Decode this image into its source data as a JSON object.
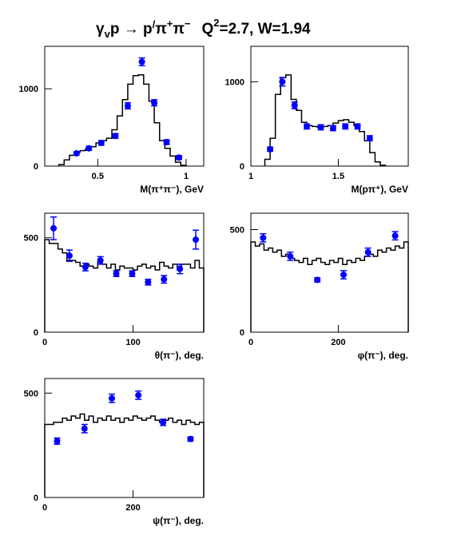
{
  "title": {
    "reaction_g": "γ",
    "reaction_sub": "v",
    "reaction_mid": "p → p",
    "reaction_prime": "/",
    "reaction_pi1": "π",
    "reaction_sup1": "+",
    "reaction_pi2": "π",
    "reaction_sup2": "−",
    "q_label": "Q",
    "q_sup": "2",
    "q_value": "=2.7, W=1.94"
  },
  "chart_data": [
    {
      "type": "line",
      "variant": "histogram-with-points",
      "xlabel": "M(π⁺π⁻), GeV",
      "xlim": [
        0.2,
        1.1
      ],
      "ylim": [
        0,
        1550
      ],
      "xticks": [
        0.5,
        1
      ],
      "xtick_labels": [
        "0.5",
        "1"
      ],
      "yticks": [
        0,
        1000
      ],
      "ytick_labels": [
        "0",
        "1000"
      ],
      "histogram": {
        "edges": [
          0.28,
          0.31,
          0.34,
          0.37,
          0.4,
          0.43,
          0.46,
          0.49,
          0.52,
          0.55,
          0.58,
          0.61,
          0.64,
          0.67,
          0.7,
          0.73,
          0.76,
          0.79,
          0.82,
          0.85,
          0.88,
          0.91,
          0.94,
          0.97,
          1.0
        ],
        "values": [
          20,
          80,
          140,
          180,
          200,
          220,
          250,
          300,
          330,
          360,
          470,
          650,
          860,
          1060,
          1170,
          1180,
          1060,
          840,
          560,
          330,
          230,
          130,
          50,
          10
        ]
      },
      "points": {
        "x": [
          0.38,
          0.45,
          0.52,
          0.6,
          0.67,
          0.75,
          0.82,
          0.89,
          0.96
        ],
        "y": [
          165,
          230,
          300,
          390,
          780,
          1350,
          820,
          310,
          110
        ],
        "err": [
          20,
          25,
          30,
          30,
          40,
          50,
          40,
          30,
          25
        ]
      }
    },
    {
      "type": "line",
      "variant": "histogram-with-points",
      "xlabel": "M(pπ⁺), GeV",
      "xlim": [
        1.0,
        1.9
      ],
      "ylim": [
        0,
        1420
      ],
      "xticks": [
        1,
        1.5
      ],
      "xtick_labels": [
        "1",
        "1.5"
      ],
      "yticks": [
        0,
        1000
      ],
      "ytick_labels": [
        "0",
        "1000"
      ],
      "histogram": {
        "edges": [
          1.08,
          1.11,
          1.14,
          1.17,
          1.2,
          1.23,
          1.26,
          1.29,
          1.32,
          1.35,
          1.38,
          1.41,
          1.44,
          1.47,
          1.5,
          1.53,
          1.56,
          1.59,
          1.62,
          1.65,
          1.68,
          1.71,
          1.74,
          1.77
        ],
        "values": [
          80,
          330,
          850,
          1050,
          1080,
          790,
          660,
          520,
          480,
          470,
          460,
          470,
          480,
          510,
          540,
          550,
          520,
          480,
          410,
          300,
          160,
          50,
          10
        ]
      },
      "points": {
        "x": [
          1.11,
          1.18,
          1.25,
          1.32,
          1.4,
          1.47,
          1.54,
          1.61,
          1.68
        ],
        "y": [
          200,
          1000,
          720,
          470,
          460,
          450,
          470,
          470,
          330
        ],
        "err": [
          25,
          50,
          40,
          30,
          30,
          30,
          30,
          30,
          30
        ]
      }
    },
    {
      "type": "line",
      "variant": "histogram-with-points",
      "xlabel": "θ(π⁻), deg.",
      "xlim": [
        0,
        180
      ],
      "ylim": [
        0,
        630
      ],
      "xticks": [
        0,
        100
      ],
      "xtick_labels": [
        "0",
        "100"
      ],
      "yticks": [
        0,
        500
      ],
      "ytick_labels": [
        "0",
        "500"
      ],
      "histogram": {
        "edges": [
          0,
          5,
          10,
          15,
          20,
          25,
          30,
          35,
          40,
          45,
          50,
          55,
          60,
          65,
          70,
          75,
          80,
          85,
          90,
          95,
          100,
          105,
          110,
          115,
          120,
          125,
          130,
          135,
          140,
          145,
          150,
          155,
          160,
          165,
          170,
          175,
          180
        ],
        "values": [
          490,
          470,
          470,
          440,
          420,
          380,
          380,
          370,
          350,
          360,
          350,
          340,
          370,
          360,
          340,
          360,
          330,
          350,
          340,
          340,
          330,
          350,
          360,
          340,
          350,
          330,
          370,
          350,
          340,
          360,
          330,
          360,
          360,
          340,
          380,
          340
        ]
      },
      "points": {
        "x": [
          10,
          28,
          46,
          63,
          81,
          99,
          117,
          135,
          153,
          171
        ],
        "y": [
          550,
          405,
          345,
          380,
          310,
          310,
          265,
          280,
          335,
          490
        ],
        "err": [
          60,
          30,
          20,
          20,
          15,
          15,
          15,
          20,
          25,
          50
        ]
      }
    },
    {
      "type": "line",
      "variant": "histogram-with-points",
      "xlabel": "φ(π⁻), deg.",
      "xlim": [
        0,
        360
      ],
      "ylim": [
        0,
        580
      ],
      "xticks": [
        0,
        200
      ],
      "xtick_labels": [
        "0",
        "200"
      ],
      "yticks": [
        0,
        500
      ],
      "ytick_labels": [
        "0",
        "500"
      ],
      "histogram": {
        "edges": [
          0,
          10,
          20,
          30,
          40,
          50,
          60,
          70,
          80,
          90,
          100,
          110,
          120,
          130,
          140,
          150,
          160,
          170,
          180,
          190,
          200,
          210,
          220,
          230,
          240,
          250,
          260,
          270,
          280,
          290,
          300,
          310,
          320,
          330,
          340,
          350,
          360
        ],
        "values": [
          440,
          420,
          430,
          400,
          410,
          390,
          400,
          370,
          380,
          360,
          350,
          340,
          360,
          330,
          350,
          360,
          340,
          330,
          350,
          340,
          360,
          330,
          350,
          340,
          360,
          350,
          370,
          380,
          370,
          400,
          390,
          410,
          400,
          420,
          410,
          440
        ]
      },
      "points": {
        "x": [
          28,
          90,
          152,
          212,
          268,
          330
        ],
        "y": [
          460,
          370,
          255,
          280,
          390,
          470
        ],
        "err": [
          20,
          20,
          10,
          20,
          20,
          20
        ]
      }
    },
    {
      "type": "line",
      "variant": "histogram-with-points",
      "xlabel": "ψ(π⁻), deg.",
      "xlim": [
        0,
        360
      ],
      "ylim": [
        0,
        570
      ],
      "xticks": [
        0,
        200
      ],
      "xtick_labels": [
        "0",
        "200"
      ],
      "yticks": [
        0,
        500
      ],
      "ytick_labels": [
        "0",
        "500"
      ],
      "histogram": {
        "edges": [
          0,
          10,
          20,
          30,
          40,
          50,
          60,
          70,
          80,
          90,
          100,
          110,
          120,
          130,
          140,
          150,
          160,
          170,
          180,
          190,
          200,
          210,
          220,
          230,
          240,
          250,
          260,
          270,
          280,
          290,
          300,
          310,
          320,
          330,
          340,
          350,
          360
        ],
        "values": [
          350,
          350,
          360,
          360,
          380,
          370,
          390,
          380,
          400,
          370,
          390,
          360,
          380,
          370,
          390,
          370,
          380,
          360,
          380,
          370,
          390,
          380,
          370,
          380,
          390,
          370,
          360,
          370,
          380,
          360,
          370,
          350,
          370,
          360,
          350,
          360
        ]
      },
      "points": {
        "x": [
          28,
          90,
          152,
          212,
          268,
          330
        ],
        "y": [
          270,
          330,
          475,
          490,
          360,
          280
        ],
        "err": [
          15,
          20,
          20,
          20,
          15,
          10
        ]
      }
    }
  ]
}
